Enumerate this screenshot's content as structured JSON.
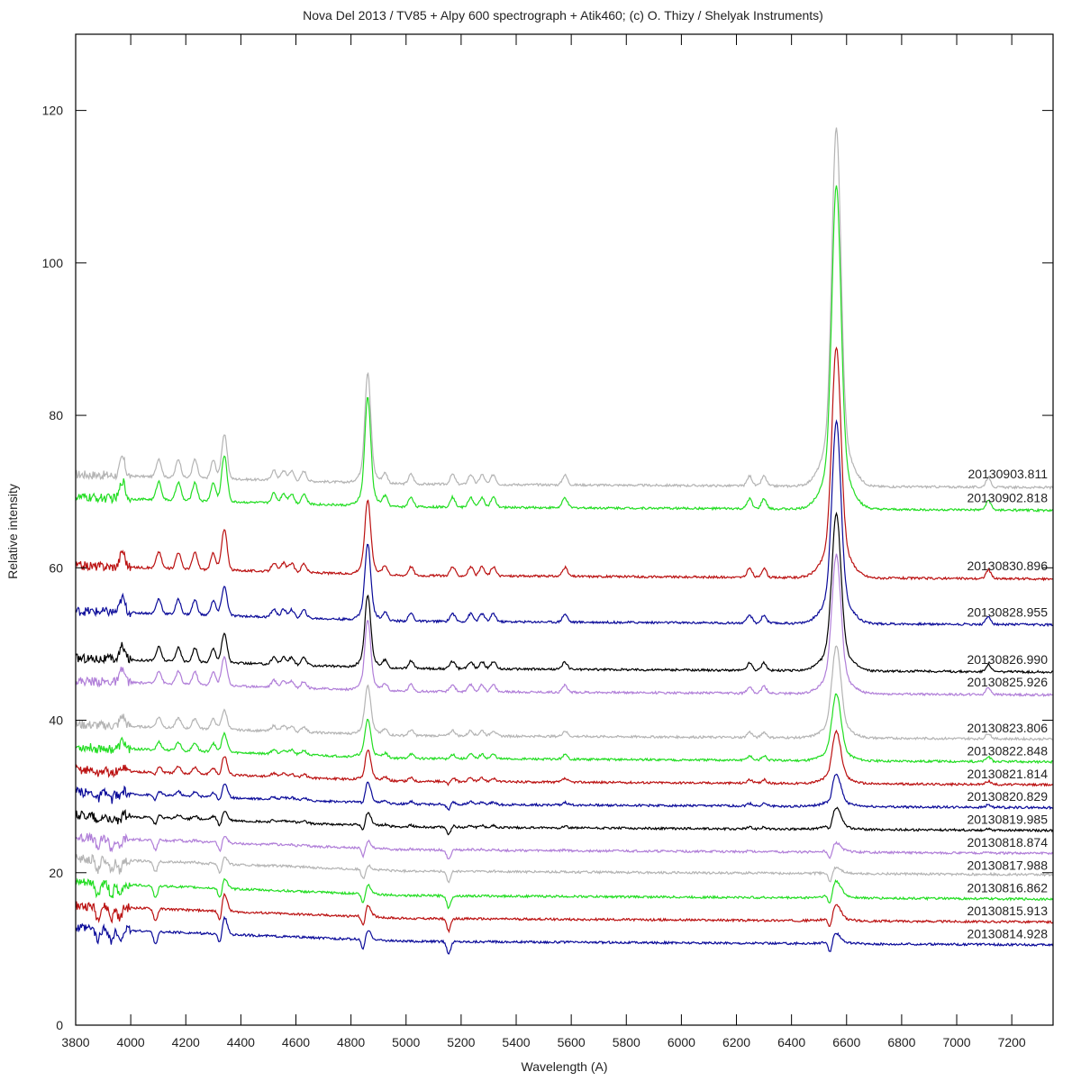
{
  "chart_data": {
    "type": "line",
    "title": "Nova Del 2013 / TV85 + Alpy 600 spectrograph + Atik460; (c) O. Thizy / Shelyak Instruments)",
    "xlabel": "Wavelength (A)",
    "ylabel": "Relative intensity",
    "xlim": [
      3800,
      7350
    ],
    "ylim": [
      0,
      130
    ],
    "x_ticks": [
      3800,
      4000,
      4200,
      4400,
      4600,
      4800,
      5000,
      5200,
      5400,
      5600,
      5800,
      6000,
      6200,
      6400,
      6600,
      6800,
      7000,
      7200
    ],
    "y_ticks": [
      0,
      20,
      40,
      60,
      80,
      100,
      120
    ],
    "grid": false,
    "legend_position": "inline labels at right end of each trace",
    "series": [
      {
        "name": "20130903.811",
        "color": "#b4b4b4",
        "baseline": 71.0,
        "label_y": 72.3,
        "halpha_peak": 118.0,
        "hbeta_peak": 85.5,
        "hgamma_peak": 76.8,
        "emission": 1.0
      },
      {
        "name": "20130902.818",
        "color": "#22dd22",
        "baseline": 68.0,
        "label_y": 69.2,
        "halpha_peak": 110.5,
        "hbeta_peak": 82.3,
        "hgamma_peak": 74.0,
        "emission": 1.0
      },
      {
        "name": "20130830.896",
        "color": "#bb1111",
        "baseline": 59.0,
        "label_y": 60.3,
        "halpha_peak": 89.3,
        "hbeta_peak": 68.8,
        "hgamma_peak": 64.3,
        "emission": 0.9
      },
      {
        "name": "20130828.955",
        "color": "#0a0a99",
        "baseline": 53.0,
        "label_y": 54.2,
        "halpha_peak": 79.5,
        "hbeta_peak": 63.0,
        "hgamma_peak": 56.8,
        "emission": 0.8
      },
      {
        "name": "20130826.990",
        "color": "#000000",
        "baseline": 46.8,
        "label_y": 48.0,
        "halpha_peak": 67.5,
        "hbeta_peak": 56.3,
        "hgamma_peak": 50.6,
        "emission": 0.75
      },
      {
        "name": "20130825.926",
        "color": "#b07ed8",
        "baseline": 43.8,
        "label_y": 45.0,
        "halpha_peak": 62.0,
        "hbeta_peak": 53.0,
        "hgamma_peak": 47.5,
        "emission": 0.7
      },
      {
        "name": "20130823.806",
        "color": "#b4b4b4",
        "baseline": 38.0,
        "label_y": 39.0,
        "halpha_peak": 50.0,
        "hbeta_peak": 44.5,
        "hgamma_peak": 40.5,
        "emission": 0.55
      },
      {
        "name": "20130822.848",
        "color": "#22dd22",
        "baseline": 35.0,
        "label_y": 36.0,
        "halpha_peak": 43.8,
        "hbeta_peak": 40.0,
        "hgamma_peak": 37.4,
        "emission": 0.45
      },
      {
        "name": "20130821.814",
        "color": "#bb1111",
        "baseline": 32.0,
        "label_y": 33.0,
        "halpha_peak": 38.8,
        "hbeta_peak": 36.0,
        "hgamma_peak": 34.5,
        "emission": 0.35
      },
      {
        "name": "20130820.829",
        "color": "#0a0a99",
        "baseline": 29.0,
        "label_y": 30.0,
        "halpha_peak": 33.2,
        "hbeta_peak": 31.8,
        "hgamma_peak": 30.9,
        "emission": 0.25
      },
      {
        "name": "20130819.985",
        "color": "#000000",
        "baseline": 26.0,
        "label_y": 27.0,
        "halpha_peak": 28.8,
        "hbeta_peak": 27.8,
        "hgamma_peak": 27.3,
        "emission": 0.18
      },
      {
        "name": "20130818.874",
        "color": "#b07ed8",
        "baseline": 23.0,
        "label_y": 24.0,
        "halpha_peak": 24.2,
        "hbeta_peak": 24.0,
        "hgamma_peak": 24.0,
        "emission": 0.08
      },
      {
        "name": "20130817.988",
        "color": "#b4b4b4",
        "baseline": 20.2,
        "label_y": 21.0,
        "halpha_peak": 21.0,
        "hbeta_peak": 20.8,
        "hgamma_peak": 21.3,
        "emission": 0.05
      },
      {
        "name": "20130816.862",
        "color": "#22dd22",
        "baseline": 17.0,
        "label_y": 18.0,
        "halpha_peak": 19.2,
        "hbeta_peak": 18.3,
        "hgamma_peak": 18.4,
        "emission": 0.0
      },
      {
        "name": "20130815.913",
        "color": "#bb1111",
        "baseline": 14.0,
        "label_y": 15.0,
        "halpha_peak": 16.0,
        "hbeta_peak": 15.6,
        "hgamma_peak": 16.4,
        "emission": 0.0
      },
      {
        "name": "20130814.928",
        "color": "#0a0a99",
        "baseline": 11.0,
        "label_y": 12.0,
        "halpha_peak": 12.3,
        "hbeta_peak": 12.3,
        "hgamma_peak": 13.3,
        "emission": 0.0
      }
    ]
  }
}
